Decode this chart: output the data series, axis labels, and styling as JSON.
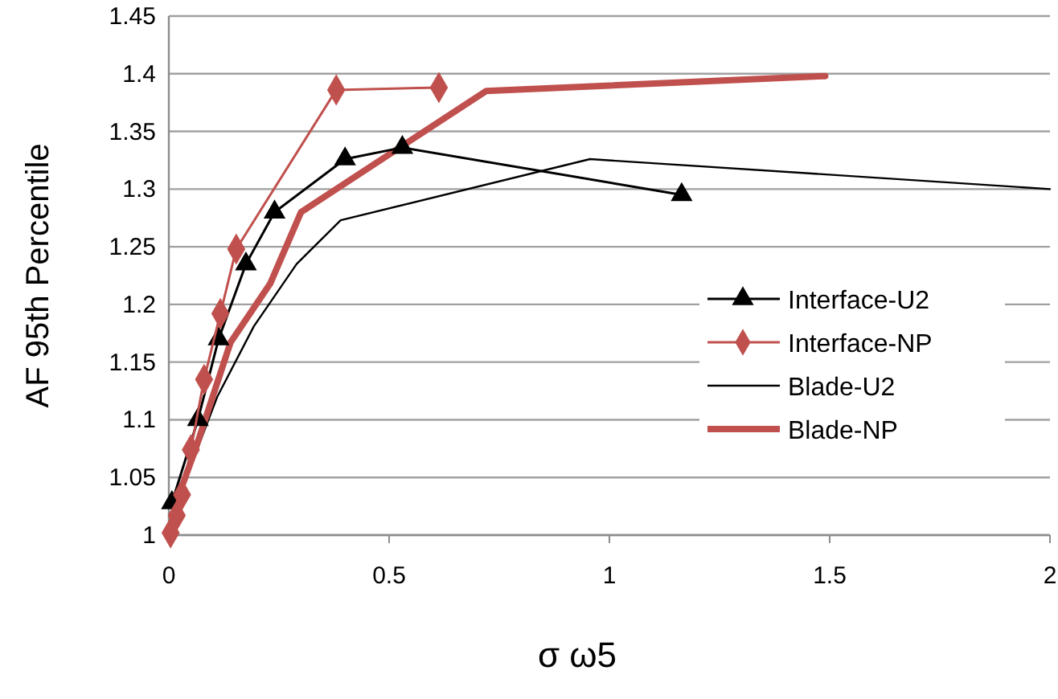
{
  "chart_data": {
    "type": "line",
    "xlabel": "σ ω5",
    "ylabel": "AF 95th Percentile",
    "xlim": [
      0,
      2
    ],
    "xticks": [
      0,
      0.5,
      1,
      1.5,
      2
    ],
    "ylim": [
      1,
      1.45
    ],
    "yticks": [
      1,
      1.05,
      1.1,
      1.15,
      1.2,
      1.25,
      1.3,
      1.35,
      1.4,
      1.45
    ],
    "grid": "y",
    "legend": "right",
    "series": [
      {
        "name": "Interface-U2",
        "color": "#000000",
        "marker": "triangle",
        "x": [
          0.007,
          0.066,
          0.113,
          0.175,
          0.24,
          0.4,
          0.53,
          1.164
        ],
        "values": [
          1.028,
          1.1,
          1.17,
          1.235,
          1.28,
          1.326,
          1.336,
          1.295
        ]
      },
      {
        "name": "Interface-NP",
        "color": "#c0504d",
        "marker": "diamond",
        "x": [
          0.004,
          0.018,
          0.03,
          0.05,
          0.08,
          0.117,
          0.153,
          0.38,
          0.613
        ],
        "values": [
          1.002,
          1.017,
          1.035,
          1.074,
          1.135,
          1.192,
          1.248,
          1.386,
          1.388
        ]
      },
      {
        "name": "Blade-U2",
        "color": "#000000",
        "marker": "none",
        "x": [
          0.01,
          0.05,
          0.11,
          0.193,
          0.29,
          0.39,
          0.956,
          2
        ],
        "values": [
          1.02,
          1.06,
          1.12,
          1.181,
          1.235,
          1.273,
          1.326,
          1.3
        ]
      },
      {
        "name": "Blade-NP",
        "color": "#c0504d",
        "marker": "none",
        "x": [
          0.005,
          0.02,
          0.06,
          0.14,
          0.23,
          0.3,
          0.72,
          1.49
        ],
        "values": [
          1.0,
          1.032,
          1.074,
          1.167,
          1.218,
          1.28,
          1.385,
          1.398
        ]
      }
    ]
  }
}
